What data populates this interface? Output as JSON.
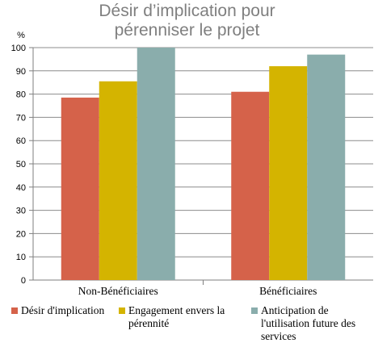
{
  "chart_data": {
    "type": "bar",
    "title_lines": [
      "Désir d’implication pour",
      "pérenniser le projet"
    ],
    "ylabel": "%",
    "ylim": [
      0,
      100
    ],
    "yticks": [
      0,
      10,
      20,
      30,
      40,
      50,
      60,
      70,
      80,
      90,
      100
    ],
    "grid": true,
    "categories": [
      "Non-Bénéficiaires",
      "Bénéficiaires"
    ],
    "series": [
      {
        "name": "Désir d'implication",
        "color": "#d5624a",
        "values": [
          78.5,
          81
        ]
      },
      {
        "name": "Engagement envers la pérennité",
        "color": "#d4b400",
        "values": [
          85.5,
          92
        ]
      },
      {
        "name": "Anticipation de l'utilisation future des services",
        "color": "#8aadac",
        "values": [
          100,
          97
        ]
      }
    ],
    "legend_position": "bottom",
    "legend_lines": [
      [
        "Désir d'implication"
      ],
      [
        "Engagement envers la",
        "pérennité"
      ],
      [
        "Anticipation de",
        "l'utilisation future des",
        "services"
      ]
    ]
  }
}
